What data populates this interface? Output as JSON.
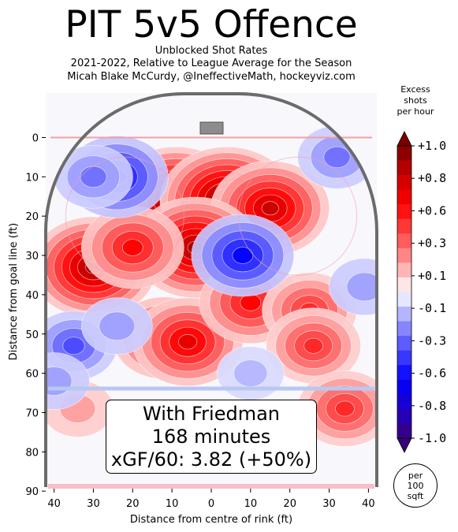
{
  "header": {
    "title": "PIT 5v5 Offence",
    "subtitle_lines": [
      "Unblocked Shot Rates",
      "2021-2022, Relative to League Average for the Season",
      "Micah Blake McCurdy, @IneffectiveMath, hockeyviz.com"
    ]
  },
  "annotation": {
    "lines": [
      "With Friedman",
      "168 minutes",
      "xGF/60: 3.82 (+50%)"
    ]
  },
  "colorbar": {
    "title_lines": [
      "Excess",
      "shots",
      "per hour"
    ],
    "tick_labels": [
      "+1.0",
      "+0.8",
      "+0.6",
      "+0.3",
      "+0.1",
      "-0.1",
      "-0.3",
      "-0.6",
      "-0.8",
      "-1.0"
    ],
    "tick_values": [
      1.0,
      0.8,
      0.6,
      0.3,
      0.1,
      -0.1,
      -0.3,
      -0.6,
      -0.8,
      -1.0
    ],
    "unit_lines": [
      "per",
      "100",
      "sqft"
    ]
  },
  "colors": {
    "red_max": "#7a0000",
    "red": "#ff0000",
    "white": "#ffffff",
    "blue": "#0000ff",
    "blue_max": "#3a007a",
    "rink_border": "#6b6b6b",
    "goal": "#8c8c8c"
  },
  "chart_data": {
    "type": "heatmap",
    "xlabel": "Distance from centre of rink (ft)",
    "ylabel": "Distance from goal line (ft)",
    "x_ticks": [
      40,
      30,
      20,
      10,
      0,
      10,
      20,
      30,
      40
    ],
    "y_ticks": [
      0,
      10,
      20,
      30,
      40,
      50,
      60,
      70,
      80,
      90
    ],
    "xlim": [
      -42.5,
      42.5
    ],
    "ylim": [
      -11,
      90
    ],
    "colorbar_range": [
      -1.0,
      1.0
    ],
    "regions": [
      {
        "x": -9,
        "y": 16,
        "value": 1.0
      },
      {
        "x": 4,
        "y": 16,
        "value": 1.0
      },
      {
        "x": 15,
        "y": 18,
        "value": 0.8
      },
      {
        "x": -4,
        "y": 28,
        "value": 0.9
      },
      {
        "x": -30,
        "y": 33,
        "value": 0.9
      },
      {
        "x": -20,
        "y": 28,
        "value": 0.6
      },
      {
        "x": -12,
        "y": 51,
        "value": 0.6
      },
      {
        "x": -6,
        "y": 52,
        "value": 0.7
      },
      {
        "x": 10,
        "y": 42,
        "value": 0.6
      },
      {
        "x": 25,
        "y": 44,
        "value": 0.5
      },
      {
        "x": 26,
        "y": 53,
        "value": 0.5
      },
      {
        "x": 34,
        "y": 69,
        "value": 0.5
      },
      {
        "x": -34,
        "y": 69,
        "value": 0.2
      },
      {
        "x": 8,
        "y": 30,
        "value": -0.6
      },
      {
        "x": -24,
        "y": 10,
        "value": -0.6
      },
      {
        "x": -30,
        "y": 10,
        "value": -0.3
      },
      {
        "x": 32,
        "y": 5,
        "value": -0.3
      },
      {
        "x": -35,
        "y": 53,
        "value": -0.4
      },
      {
        "x": -24,
        "y": 48,
        "value": -0.2
      },
      {
        "x": 39,
        "y": 38,
        "value": -0.2
      },
      {
        "x": 10,
        "y": 60,
        "value": -0.15
      },
      {
        "x": -40,
        "y": 62,
        "value": -0.2
      }
    ]
  }
}
